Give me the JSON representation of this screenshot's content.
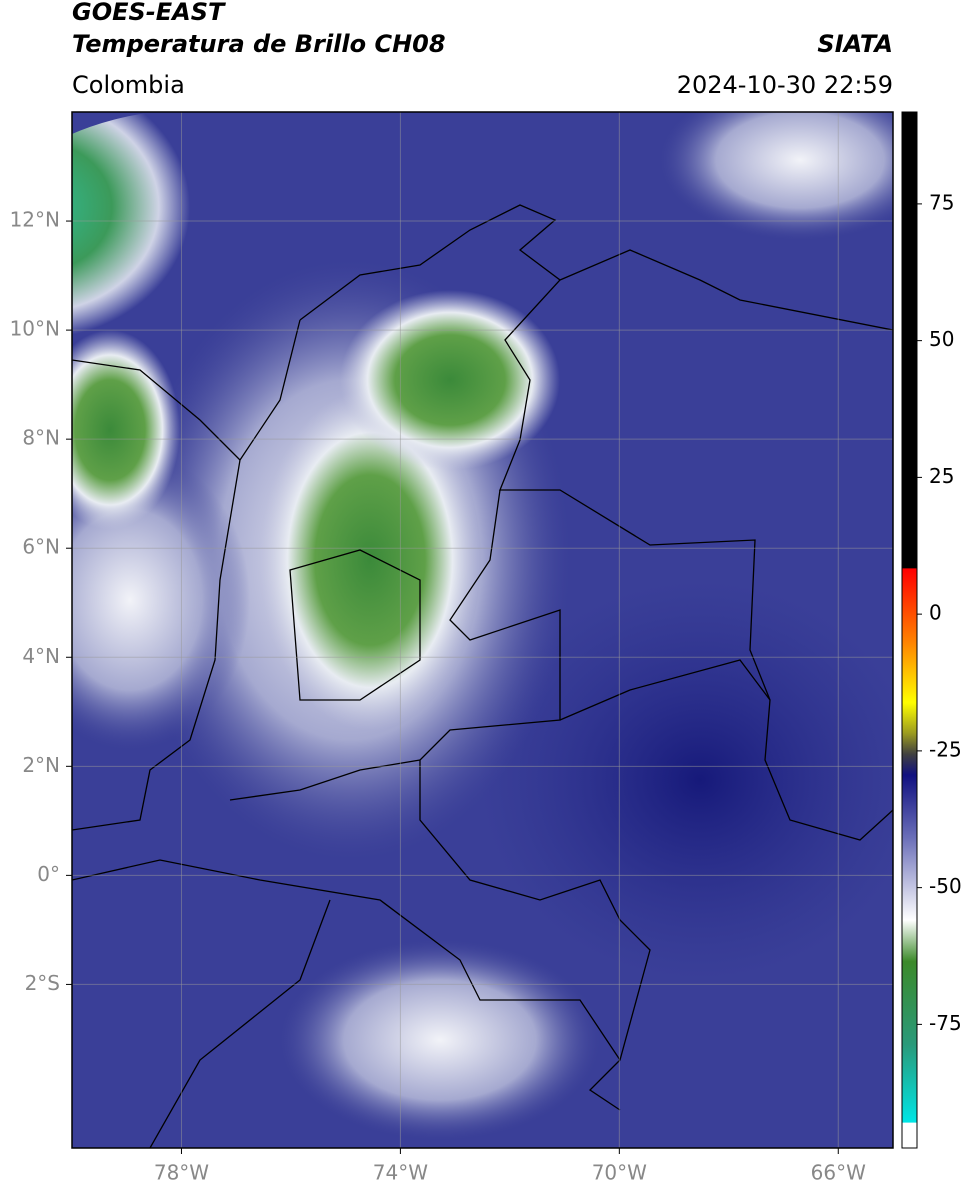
{
  "header": {
    "title": "GOES-EAST",
    "subtitle": "Temperatura de Brillo CH08",
    "source": "SIATA",
    "region": "Colombia",
    "timestamp": "2024-10-30 22:59"
  },
  "map": {
    "xlim": [
      -80,
      -65
    ],
    "ylim": [
      -5,
      14
    ],
    "xticks": [
      {
        "value": -78,
        "label": "78°W"
      },
      {
        "value": -74,
        "label": "74°W"
      },
      {
        "value": -70,
        "label": "70°W"
      },
      {
        "value": -66,
        "label": "66°W"
      }
    ],
    "yticks": [
      {
        "value": 12,
        "label": "12°N"
      },
      {
        "value": 10,
        "label": "10°N"
      },
      {
        "value": 8,
        "label": "8°N"
      },
      {
        "value": 6,
        "label": "6°N"
      },
      {
        "value": 4,
        "label": "4°N"
      },
      {
        "value": 2,
        "label": "2°N"
      },
      {
        "value": 0,
        "label": "0°"
      },
      {
        "value": -2,
        "label": "2°S"
      }
    ],
    "grid": true,
    "colorbar": {
      "lim": [
        -97.6,
        91.8
      ],
      "ticks": [
        75,
        50,
        25,
        0,
        -25,
        -50,
        -75
      ]
    }
  }
}
